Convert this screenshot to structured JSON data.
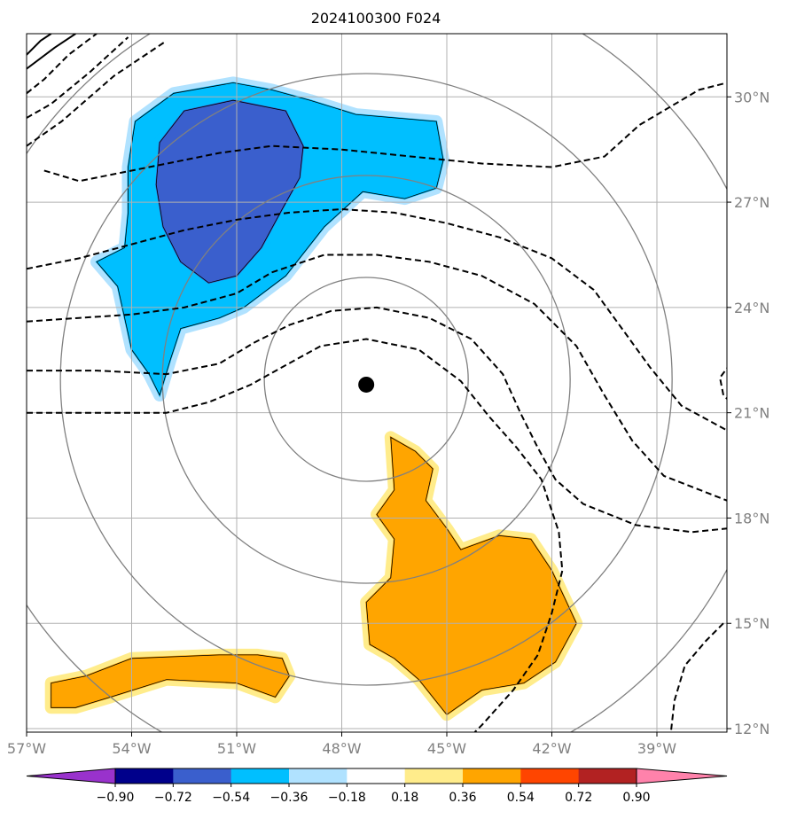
{
  "chart_data": {
    "type": "contour_map",
    "title": "2024100300 F024",
    "x_axis": {
      "range": [
        -57,
        -37
      ],
      "ticks": [
        -57,
        -54,
        -51,
        -48,
        -45,
        -42,
        -39
      ],
      "tick_labels": [
        "57°W",
        "54°W",
        "51°W",
        "48°W",
        "45°W",
        "42°W",
        "39°W"
      ]
    },
    "y_axis": {
      "range": [
        11.9,
        31.8
      ],
      "ticks": [
        12,
        15,
        18,
        21,
        24,
        27,
        30
      ],
      "tick_labels": [
        "12°N",
        "15°N",
        "18°N",
        "21°N",
        "24°N",
        "27°N",
        "30°N"
      ],
      "position": "right"
    },
    "grid": true,
    "center_marker": {
      "lon": -47.3,
      "lat": 21.8
    },
    "range_rings": {
      "count": 4,
      "color": "#808080"
    },
    "colorbar": {
      "levels": [
        -0.9,
        -0.72,
        -0.54,
        -0.36,
        -0.18,
        0.18,
        0.36,
        0.54,
        0.72,
        0.9
      ],
      "labels": [
        "−0.90",
        "−0.72",
        "−0.54",
        "−0.36",
        "−0.18",
        "0.18",
        "0.36",
        "0.54",
        "0.72",
        "0.90"
      ],
      "colors": [
        "#9932cc",
        "#00008b",
        "#3a5fcd",
        "#00bfff",
        "#b0e2ff",
        "#ffffff",
        "#ffec8b",
        "#ffa500",
        "#ff4500",
        "#b22222",
        "#ff82ab"
      ],
      "extend": "both",
      "orientation": "horizontal"
    },
    "filled_regions": [
      {
        "name": "negative anomaly",
        "level": -0.36,
        "color": "#00bfff",
        "outline": [
          [
            -53.9,
            29.3
          ],
          [
            -52.8,
            30.1
          ],
          [
            -51.1,
            30.4
          ],
          [
            -50.0,
            30.2
          ],
          [
            -48.9,
            29.9
          ],
          [
            -47.6,
            29.5
          ],
          [
            -45.3,
            29.3
          ],
          [
            -45.1,
            28.2
          ],
          [
            -45.3,
            27.4
          ],
          [
            -46.2,
            27.1
          ],
          [
            -47.4,
            27.3
          ],
          [
            -48.5,
            26.3
          ],
          [
            -49.6,
            24.9
          ],
          [
            -50.8,
            24.0
          ],
          [
            -51.5,
            23.7
          ],
          [
            -52.6,
            23.4
          ],
          [
            -52.9,
            22.5
          ],
          [
            -53.2,
            21.5
          ],
          [
            -53.5,
            22.1
          ],
          [
            -54.0,
            22.8
          ],
          [
            -54.2,
            23.7
          ],
          [
            -54.4,
            24.6
          ],
          [
            -55.0,
            25.3
          ],
          [
            -54.2,
            25.7
          ],
          [
            -54.1,
            26.7
          ],
          [
            -54.1,
            28.0
          ]
        ]
      },
      {
        "name": "strong negative anomaly",
        "level": -0.54,
        "color": "#3a5fcd",
        "outline": [
          [
            -52.5,
            29.6
          ],
          [
            -51.1,
            29.9
          ],
          [
            -49.6,
            29.6
          ],
          [
            -49.1,
            28.6
          ],
          [
            -49.2,
            27.7
          ],
          [
            -49.7,
            26.8
          ],
          [
            -50.3,
            25.7
          ],
          [
            -51.0,
            24.9
          ],
          [
            -51.8,
            24.7
          ],
          [
            -52.6,
            25.3
          ],
          [
            -53.1,
            26.3
          ],
          [
            -53.3,
            27.5
          ],
          [
            -53.2,
            28.7
          ]
        ]
      },
      {
        "name": "positive anomaly east",
        "level": 0.36,
        "color": "#ffa500",
        "outline": [
          [
            -46.6,
            20.3
          ],
          [
            -45.9,
            19.9
          ],
          [
            -45.4,
            19.4
          ],
          [
            -45.6,
            18.5
          ],
          [
            -45.0,
            17.7
          ],
          [
            -44.6,
            17.1
          ],
          [
            -43.5,
            17.5
          ],
          [
            -42.6,
            17.4
          ],
          [
            -42.0,
            16.5
          ],
          [
            -41.3,
            15.0
          ],
          [
            -41.9,
            13.9
          ],
          [
            -42.8,
            13.3
          ],
          [
            -44.0,
            13.1
          ],
          [
            -45.0,
            12.4
          ],
          [
            -45.8,
            13.4
          ],
          [
            -46.5,
            14.0
          ],
          [
            -47.2,
            14.4
          ],
          [
            -47.3,
            15.6
          ],
          [
            -46.6,
            16.3
          ],
          [
            -46.5,
            17.4
          ],
          [
            -47.0,
            18.1
          ],
          [
            -46.5,
            18.8
          ]
        ]
      },
      {
        "name": "positive anomaly southwest",
        "level": 0.36,
        "color": "#ffa500",
        "outline": [
          [
            -56.3,
            13.3
          ],
          [
            -55.3,
            13.5
          ],
          [
            -54.0,
            14.0
          ],
          [
            -51.5,
            14.1
          ],
          [
            -50.4,
            14.1
          ],
          [
            -49.7,
            14.0
          ],
          [
            -49.5,
            13.5
          ],
          [
            -49.9,
            12.9
          ],
          [
            -51.0,
            13.3
          ],
          [
            -53.0,
            13.4
          ],
          [
            -54.6,
            12.9
          ],
          [
            -55.6,
            12.6
          ],
          [
            -56.3,
            12.6
          ]
        ]
      }
    ],
    "dashed_contours": [
      [
        [
          -56.5,
          27.9
        ],
        [
          -55.5,
          27.6
        ],
        [
          -54.5,
          27.8
        ],
        [
          -53.5,
          28.0
        ],
        [
          -52.5,
          28.2
        ],
        [
          -51.5,
          28.4
        ],
        [
          -50.0,
          28.6
        ],
        [
          -48.0,
          28.5
        ],
        [
          -46.0,
          28.3
        ],
        [
          -44.0,
          28.1
        ],
        [
          -42.0,
          28.0
        ],
        [
          -40.5,
          28.3
        ],
        [
          -39.5,
          29.2
        ],
        [
          -37.8,
          30.2
        ],
        [
          -37.0,
          30.4
        ]
      ],
      [
        [
          -57.0,
          25.1
        ],
        [
          -55.5,
          25.4
        ],
        [
          -54.0,
          25.8
        ],
        [
          -52.5,
          26.2
        ],
        [
          -51.0,
          26.5
        ],
        [
          -49.5,
          26.7
        ],
        [
          -48.0,
          26.8
        ],
        [
          -46.5,
          26.7
        ],
        [
          -45.0,
          26.4
        ],
        [
          -43.5,
          26.0
        ],
        [
          -42.0,
          25.4
        ],
        [
          -40.8,
          24.5
        ],
        [
          -40.0,
          23.4
        ],
        [
          -39.2,
          22.3
        ],
        [
          -38.3,
          21.2
        ],
        [
          -37.0,
          20.5
        ]
      ],
      [
        [
          -57.0,
          23.6
        ],
        [
          -55.5,
          23.7
        ],
        [
          -54.0,
          23.8
        ],
        [
          -52.5,
          24.0
        ],
        [
          -51.0,
          24.4
        ],
        [
          -50.0,
          25.0
        ],
        [
          -48.5,
          25.5
        ],
        [
          -47.0,
          25.5
        ],
        [
          -45.5,
          25.3
        ],
        [
          -44.0,
          24.9
        ],
        [
          -42.5,
          24.1
        ],
        [
          -41.3,
          22.9
        ],
        [
          -40.5,
          21.5
        ],
        [
          -39.7,
          20.2
        ],
        [
          -38.8,
          19.2
        ],
        [
          -37.0,
          18.5
        ]
      ],
      [
        [
          -57.0,
          22.2
        ],
        [
          -55.0,
          22.2
        ],
        [
          -53.0,
          22.1
        ],
        [
          -51.5,
          22.4
        ],
        [
          -50.5,
          23.0
        ],
        [
          -49.5,
          23.5
        ],
        [
          -48.3,
          23.9
        ],
        [
          -47.0,
          24.0
        ],
        [
          -45.5,
          23.7
        ],
        [
          -44.3,
          23.1
        ],
        [
          -43.4,
          22.1
        ],
        [
          -42.9,
          21.0
        ],
        [
          -42.4,
          20.0
        ],
        [
          -41.9,
          19.1
        ],
        [
          -41.1,
          18.4
        ],
        [
          -39.6,
          17.8
        ],
        [
          -38.0,
          17.6
        ],
        [
          -37.0,
          17.7
        ]
      ],
      [
        [
          -57.0,
          21.0
        ],
        [
          -55.0,
          21.0
        ],
        [
          -53.0,
          21.0
        ],
        [
          -51.8,
          21.3
        ],
        [
          -50.6,
          21.8
        ],
        [
          -49.7,
          22.3
        ],
        [
          -48.6,
          22.9
        ],
        [
          -47.3,
          23.1
        ],
        [
          -45.8,
          22.8
        ],
        [
          -44.6,
          21.9
        ],
        [
          -43.8,
          20.9
        ],
        [
          -43.0,
          20.0
        ],
        [
          -42.3,
          19.1
        ],
        [
          -41.8,
          17.6
        ],
        [
          -41.7,
          16.5
        ],
        [
          -42.0,
          15.3
        ],
        [
          -42.4,
          14.1
        ],
        [
          -43.1,
          13.1
        ],
        [
          -44.0,
          12.1
        ],
        [
          -44.2,
          11.9
        ]
      ],
      [
        [
          -36.9,
          22.4
        ],
        [
          -37.2,
          22.0
        ],
        [
          -37.1,
          21.5
        ],
        [
          -36.9,
          21.3
        ]
      ],
      [
        [
          -37.1,
          15.0
        ],
        [
          -37.6,
          14.5
        ],
        [
          -38.2,
          13.8
        ],
        [
          -38.5,
          12.8
        ],
        [
          -38.6,
          11.9
        ]
      ],
      [
        [
          -57.0,
          30.1
        ],
        [
          -56.5,
          30.5
        ],
        [
          -55.8,
          31.2
        ],
        [
          -55.0,
          31.8
        ]
      ],
      [
        [
          -57.0,
          29.4
        ],
        [
          -56.3,
          29.8
        ],
        [
          -55.2,
          30.7
        ],
        [
          -54.1,
          31.7
        ]
      ],
      [
        [
          -57.0,
          28.6
        ],
        [
          -56.0,
          29.3
        ],
        [
          -54.5,
          30.6
        ],
        [
          -53.0,
          31.6
        ]
      ]
    ],
    "solid_contours": [
      [
        [
          -57.0,
          31.2
        ],
        [
          -56.6,
          31.6
        ],
        [
          -56.3,
          31.8
        ]
      ],
      [
        [
          -57.0,
          30.8
        ],
        [
          -56.2,
          31.4
        ],
        [
          -55.6,
          31.8
        ]
      ]
    ]
  }
}
